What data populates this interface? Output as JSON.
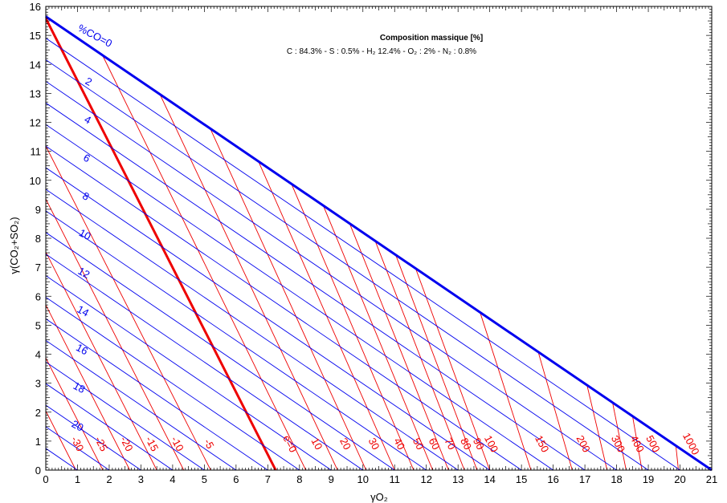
{
  "chart_data": {
    "type": "line",
    "title": "Composition massique [%]",
    "subtitle": "C : 84.3% - S : 0.5% - H₂  12.4% - O₂ : 2% - N₂ : 0.8%",
    "xlabel": "γO₂",
    "ylabel": "γ(CO₂+SO₂)",
    "xlim": [
      0,
      21
    ],
    "ylim": [
      0,
      16
    ],
    "xticks": [
      0,
      1,
      2,
      3,
      4,
      5,
      6,
      7,
      8,
      9,
      10,
      11,
      12,
      13,
      14,
      15,
      16,
      17,
      18,
      19,
      20,
      21
    ],
    "yticks": [
      0,
      1,
      2,
      3,
      4,
      5,
      6,
      7,
      8,
      9,
      10,
      11,
      12,
      13,
      14,
      15,
      16
    ],
    "grid": false,
    "colors": {
      "co_lines": "#0000ee",
      "excess_lines": "#ee0000"
    },
    "boundary_line": {
      "name": "%CO=0",
      "x": [
        0,
        21
      ],
      "y": [
        15.65,
        0
      ]
    },
    "co_lines": {
      "values": [
        0,
        1,
        2,
        3,
        4,
        5,
        6,
        7,
        8,
        9,
        10,
        11,
        12,
        13,
        14,
        15,
        16,
        17,
        18,
        19,
        20,
        21
      ],
      "labels": [
        "%CO=0",
        "2",
        "4",
        "6",
        "8",
        "10",
        "12",
        "14",
        "16",
        "18",
        "20"
      ],
      "slope_per_unit": -0.745,
      "y_at_x0_step": -0.795
    },
    "excess_air_lines": {
      "values": [
        -30,
        -25,
        -20,
        -15,
        -10,
        -5,
        0,
        10,
        20,
        30,
        40,
        50,
        60,
        70,
        80,
        90,
        100,
        150,
        200,
        300,
        400,
        500,
        1000
      ],
      "labels": [
        "-30",
        "-25",
        "-20",
        "-15",
        "-10",
        "-5",
        "e=0",
        "10",
        "20",
        "30",
        "40",
        "50",
        "60",
        "70",
        "80",
        "90",
        "100",
        "150",
        "200",
        "300",
        "400",
        "500",
        "1000"
      ],
      "x_at_y0": [
        0.55,
        1.3,
        2.1,
        2.9,
        3.7,
        4.7,
        7.25,
        8.1,
        9.0,
        9.9,
        10.7,
        11.3,
        11.8,
        12.3,
        12.8,
        13.2,
        13.6,
        15.2,
        16.5,
        17.6,
        18.2,
        18.7,
        19.9
      ],
      "x_intercept_line": [
        0.95,
        1.8,
        2.65,
        3.5,
        4.35,
        5.2,
        7.25,
        8.2,
        9.2,
        10.1,
        11.0,
        11.6,
        12.2,
        12.7,
        13.2,
        13.6,
        14.0,
        15.3,
        16.6,
        17.7,
        18.3,
        18.8,
        19.95
      ]
    }
  }
}
